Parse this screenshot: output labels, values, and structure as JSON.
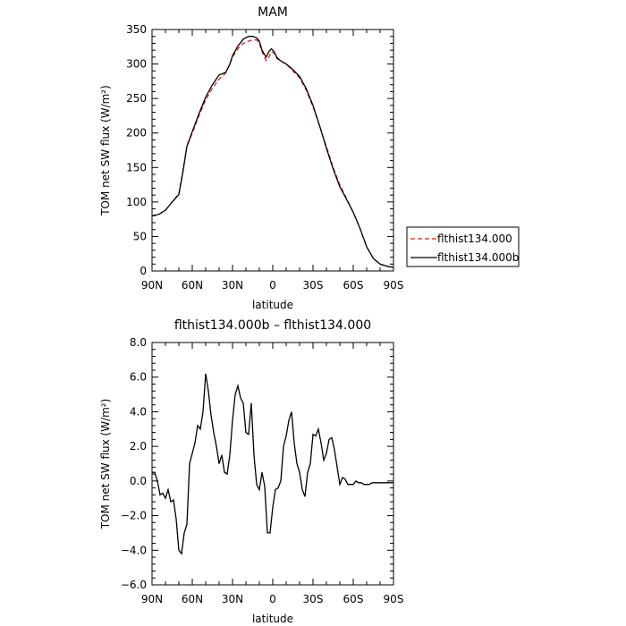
{
  "chart_data": [
    {
      "type": "line",
      "title": "MAM",
      "xlabel": "latitude",
      "ylabel": "TOM net SW flux (W/m²)",
      "x_ticks": [
        "90N",
        "60N",
        "30N",
        "0",
        "30S",
        "60S",
        "90S"
      ],
      "y_ticks": [
        "0",
        "50",
        "100",
        "150",
        "200",
        "250",
        "300",
        "350"
      ],
      "xlim": [
        90,
        -90
      ],
      "ylim": [
        0,
        350
      ],
      "legend_position": "right",
      "series": [
        {
          "name": "flthist134.000",
          "color": "#e31a1c",
          "dash": "dashed",
          "x": [
            90,
            85,
            80,
            75,
            70,
            67,
            64,
            60,
            55,
            50,
            45,
            40,
            35,
            32,
            30,
            26,
            22,
            18,
            15,
            12,
            10,
            8,
            5,
            3,
            1,
            -1,
            -3,
            -5,
            -8,
            -10,
            -15,
            -20,
            -25,
            -30,
            -35,
            -40,
            -45,
            -50,
            -55,
            -60,
            -65,
            -70,
            -75,
            -80,
            -85,
            -90
          ],
          "y": [
            80,
            82,
            88,
            100,
            112,
            145,
            180,
            200,
            225,
            248,
            265,
            278,
            287,
            300,
            310,
            322,
            330,
            333,
            335,
            335,
            330,
            318,
            305,
            310,
            318,
            316,
            308,
            305,
            302,
            300,
            290,
            280,
            262,
            238,
            210,
            180,
            150,
            125,
            105,
            85,
            62,
            35,
            18,
            10,
            7,
            5
          ]
        },
        {
          "name": "flthist134.000b",
          "color": "#000000",
          "dash": "solid",
          "x": [
            90,
            85,
            80,
            75,
            70,
            67,
            64,
            60,
            55,
            50,
            45,
            40,
            35,
            32,
            30,
            26,
            22,
            18,
            15,
            12,
            10,
            8,
            5,
            3,
            1,
            -1,
            -3,
            -5,
            -8,
            -10,
            -15,
            -20,
            -25,
            -30,
            -35,
            -40,
            -45,
            -50,
            -55,
            -60,
            -65,
            -70,
            -75,
            -80,
            -85,
            -90
          ],
          "y": [
            80,
            82,
            88,
            100,
            111,
            143,
            181,
            202,
            228,
            252,
            270,
            284,
            288,
            300,
            312,
            326,
            336,
            340,
            340,
            338,
            333,
            320,
            310,
            318,
            322,
            318,
            310,
            306,
            302,
            300,
            292,
            282,
            264,
            240,
            210,
            178,
            148,
            122,
            104,
            85,
            62,
            35,
            18,
            10,
            7,
            5
          ]
        }
      ]
    },
    {
      "type": "line",
      "title": "flthist134.000b – flthist134.000",
      "xlabel": "latitude",
      "ylabel": "TOM net SW flux (W/m²)",
      "x_ticks": [
        "90N",
        "60N",
        "30N",
        "0",
        "30S",
        "60S",
        "90S"
      ],
      "y_ticks": [
        "−6.0",
        "−4.0",
        "−2.0",
        "0.0",
        "2.0",
        "4.0",
        "6.0",
        "8.0"
      ],
      "xlim": [
        90,
        -90
      ],
      "ylim": [
        -6,
        8
      ],
      "series": [
        {
          "color": "#000000",
          "dash": "solid",
          "x": [
            90,
            88,
            86,
            84,
            82,
            80,
            78,
            76,
            74,
            72,
            70,
            68,
            66,
            64,
            62,
            60,
            58,
            56,
            54,
            52,
            50,
            48,
            46,
            44,
            42,
            40,
            38,
            36,
            34,
            32,
            30,
            28,
            26,
            24,
            22,
            20,
            18,
            16,
            14,
            12,
            10,
            8,
            6,
            4,
            2,
            0,
            -2,
            -4,
            -6,
            -8,
            -10,
            -12,
            -14,
            -16,
            -18,
            -20,
            -22,
            -24,
            -26,
            -28,
            -30,
            -32,
            -34,
            -36,
            -38,
            -40,
            -42,
            -44,
            -46,
            -48,
            -50,
            -52,
            -54,
            -56,
            -58,
            -60,
            -62,
            -64,
            -66,
            -68,
            -70,
            -72,
            -74,
            -76,
            -78,
            -80,
            -85,
            -90
          ],
          "y": [
            0.5,
            0.5,
            0.0,
            -0.8,
            -0.7,
            -1.0,
            -0.5,
            -1.2,
            -1.1,
            -2.2,
            -4.0,
            -4.2,
            -3.0,
            -2.5,
            1.0,
            1.6,
            2.2,
            3.2,
            3.0,
            4.0,
            6.2,
            5.2,
            3.8,
            2.8,
            2.0,
            1.0,
            1.5,
            0.5,
            0.4,
            1.5,
            3.5,
            5.0,
            5.5,
            4.8,
            4.5,
            2.8,
            2.7,
            4.5,
            1.5,
            -0.2,
            -0.5,
            0.5,
            -0.3,
            -3.0,
            -3.0,
            -1.5,
            -0.5,
            -0.4,
            0.0,
            2.0,
            2.6,
            3.5,
            4.0,
            2.2,
            1.0,
            0.5,
            -0.5,
            -0.9,
            0.5,
            1.0,
            2.7,
            2.6,
            3.0,
            2.2,
            1.2,
            1.6,
            2.4,
            2.5,
            1.8,
            0.8,
            -0.2,
            0.2,
            0.1,
            -0.2,
            -0.2,
            -0.2,
            0.0,
            -0.1,
            -0.1,
            -0.2,
            -0.2,
            -0.2,
            -0.1,
            -0.1,
            -0.1,
            -0.1,
            -0.1,
            -0.1
          ]
        }
      ]
    }
  ]
}
